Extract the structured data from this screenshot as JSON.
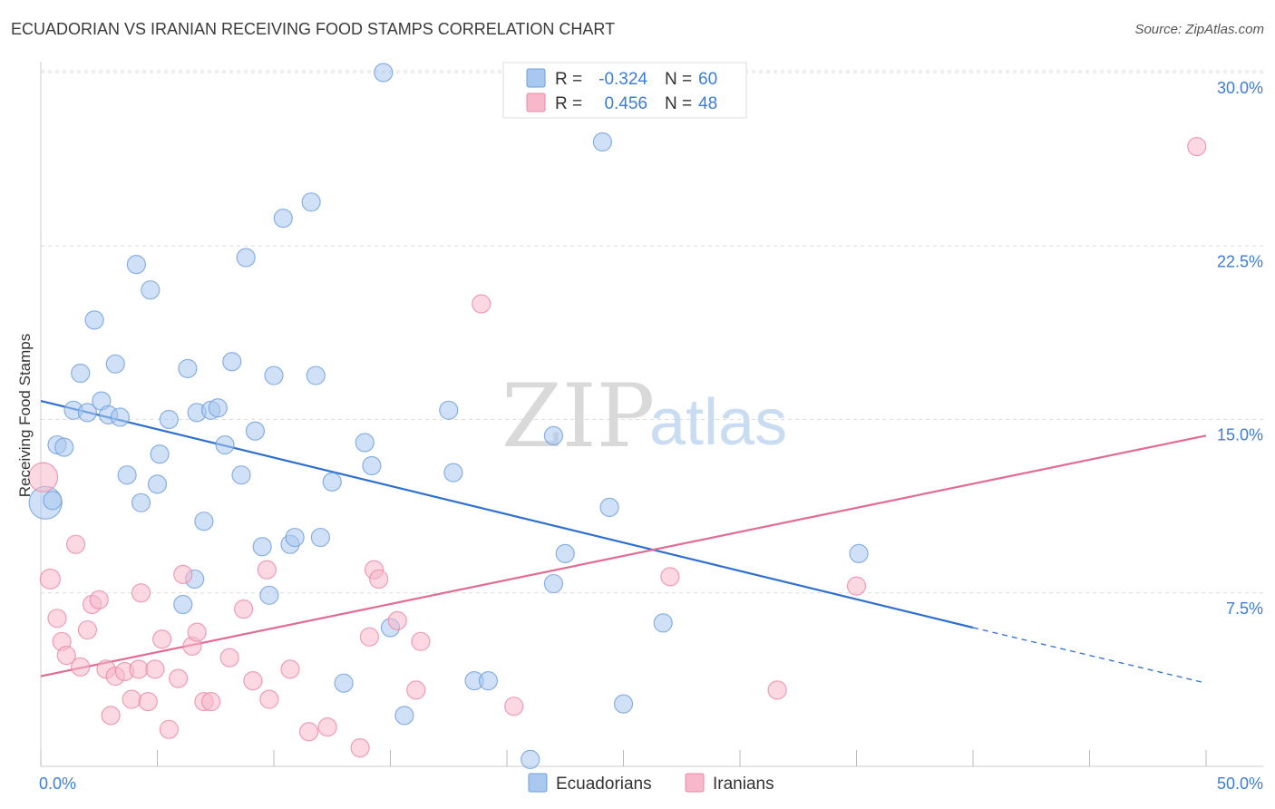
{
  "header": {
    "title": "ECUADORIAN VS IRANIAN RECEIVING FOOD STAMPS CORRELATION CHART",
    "source": "Source: ZipAtlas.com"
  },
  "watermark": {
    "zip": "ZIP",
    "atlas": "atlas"
  },
  "legend": {
    "rows": [
      {
        "r_label": "R =",
        "r_value": "-0.324",
        "n_label": "N =",
        "n_value": "60",
        "color": "#a9c8f0"
      },
      {
        "r_label": "R =",
        "r_value": "0.456",
        "n_label": "N =",
        "n_value": "48",
        "color": "#f7b8cb"
      }
    ]
  },
  "bottom_legend": {
    "items": [
      {
        "label": "Ecuadorians",
        "color": "#a9c8f0"
      },
      {
        "label": "Iranians",
        "color": "#f7b8cb"
      }
    ]
  },
  "chart_data": {
    "type": "scatter",
    "title": "ECUADORIAN VS IRANIAN RECEIVING FOOD STAMPS CORRELATION CHART",
    "xlabel": "",
    "ylabel": "Receiving Food Stamps",
    "xlim": [
      0,
      50
    ],
    "ylim": [
      0,
      30.5
    ],
    "x_tick_labels": [
      {
        "value": 0,
        "label": "0.0%"
      },
      {
        "value": 50,
        "label": "50.0%"
      }
    ],
    "y_ticks": [
      {
        "value": 7.5,
        "label": "7.5%"
      },
      {
        "value": 15.0,
        "label": "15.0%"
      },
      {
        "value": 22.5,
        "label": "22.5%"
      },
      {
        "value": 30.0,
        "label": "30.0%"
      }
    ],
    "grid": true,
    "legend_position": "top-center",
    "series": [
      {
        "name": "Ecuadorians",
        "color": "#a9c8f0",
        "stroke": "#6f9fdc",
        "trend_color": "#2f6fcf",
        "trend": {
          "x0": 0,
          "y0": 15.8,
          "x1": 40,
          "y1": 6.0,
          "dash_to_x": 50,
          "dash_to_y": 3.6
        },
        "points": [
          [
            0.2,
            11.4,
            18
          ],
          [
            0.5,
            11.5,
            10
          ],
          [
            0.7,
            13.9,
            10
          ],
          [
            1.0,
            13.8,
            10
          ],
          [
            1.4,
            15.4,
            10
          ],
          [
            1.7,
            17.0,
            10
          ],
          [
            2.0,
            15.3,
            10
          ],
          [
            2.3,
            19.3,
            10
          ],
          [
            2.6,
            15.8,
            10
          ],
          [
            2.9,
            15.2,
            10
          ],
          [
            3.2,
            17.4,
            10
          ],
          [
            3.4,
            15.1,
            10
          ],
          [
            3.7,
            12.6,
            10
          ],
          [
            4.1,
            21.7,
            10
          ],
          [
            4.3,
            11.4,
            10
          ],
          [
            4.7,
            20.6,
            10
          ],
          [
            5.1,
            13.5,
            10
          ],
          [
            5.0,
            12.2,
            10
          ],
          [
            5.5,
            15.0,
            10
          ],
          [
            6.1,
            7.0,
            10
          ],
          [
            6.3,
            17.2,
            10
          ],
          [
            6.6,
            8.1,
            10
          ],
          [
            6.7,
            15.3,
            10
          ],
          [
            7.0,
            10.6,
            10
          ],
          [
            7.3,
            15.4,
            10
          ],
          [
            7.6,
            15.5,
            10
          ],
          [
            7.9,
            13.9,
            10
          ],
          [
            8.2,
            17.5,
            10
          ],
          [
            8.6,
            12.6,
            10
          ],
          [
            8.8,
            22.0,
            10
          ],
          [
            9.2,
            14.5,
            10
          ],
          [
            9.5,
            9.5,
            10
          ],
          [
            9.8,
            7.4,
            10
          ],
          [
            10.0,
            16.9,
            10
          ],
          [
            10.4,
            23.7,
            10
          ],
          [
            10.7,
            9.6,
            10
          ],
          [
            10.9,
            9.9,
            10
          ],
          [
            11.6,
            24.4,
            10
          ],
          [
            11.8,
            16.9,
            10
          ],
          [
            12.0,
            9.9,
            10
          ],
          [
            12.5,
            12.3,
            10
          ],
          [
            13.0,
            3.6,
            10
          ],
          [
            13.9,
            14.0,
            10
          ],
          [
            14.2,
            13.0,
            10
          ],
          [
            14.7,
            30.0,
            10
          ],
          [
            15.0,
            6.0,
            10
          ],
          [
            15.6,
            2.2,
            10
          ],
          [
            17.5,
            15.4,
            10
          ],
          [
            17.7,
            12.7,
            10
          ],
          [
            18.6,
            3.7,
            10
          ],
          [
            19.2,
            3.7,
            10
          ],
          [
            21.0,
            0.3,
            10
          ],
          [
            22.0,
            14.3,
            10
          ],
          [
            22.0,
            7.9,
            10
          ],
          [
            22.5,
            9.2,
            10
          ],
          [
            24.1,
            27.0,
            10
          ],
          [
            24.4,
            11.2,
            10
          ],
          [
            25.0,
            2.7,
            10
          ],
          [
            26.7,
            6.2,
            10
          ],
          [
            35.1,
            9.2,
            10
          ]
        ]
      },
      {
        "name": "Iranians",
        "color": "#f7b8cb",
        "stroke": "#ec88a7",
        "trend_color": "#e26b95",
        "trend": {
          "x0": 0,
          "y0": 3.9,
          "x1": 50,
          "y1": 14.3
        },
        "points": [
          [
            0.1,
            12.5,
            16
          ],
          [
            0.4,
            8.1,
            11
          ],
          [
            0.7,
            6.4,
            10
          ],
          [
            0.9,
            5.4,
            10
          ],
          [
            1.1,
            4.8,
            10
          ],
          [
            1.5,
            9.6,
            10
          ],
          [
            1.7,
            4.3,
            10
          ],
          [
            2.0,
            5.9,
            10
          ],
          [
            2.2,
            7.0,
            10
          ],
          [
            2.5,
            7.2,
            10
          ],
          [
            2.8,
            4.2,
            10
          ],
          [
            3.0,
            2.2,
            10
          ],
          [
            3.2,
            3.9,
            10
          ],
          [
            3.6,
            4.1,
            10
          ],
          [
            3.9,
            2.9,
            10
          ],
          [
            4.2,
            4.2,
            10
          ],
          [
            4.3,
            7.5,
            10
          ],
          [
            4.6,
            2.8,
            10
          ],
          [
            4.9,
            4.2,
            10
          ],
          [
            5.2,
            5.5,
            10
          ],
          [
            5.5,
            1.6,
            10
          ],
          [
            5.9,
            3.8,
            10
          ],
          [
            6.1,
            8.3,
            10
          ],
          [
            6.5,
            5.2,
            10
          ],
          [
            6.7,
            5.8,
            10
          ],
          [
            7.0,
            2.8,
            10
          ],
          [
            7.3,
            2.8,
            10
          ],
          [
            8.1,
            4.7,
            10
          ],
          [
            8.7,
            6.8,
            10
          ],
          [
            9.1,
            3.7,
            10
          ],
          [
            9.7,
            8.5,
            10
          ],
          [
            9.8,
            2.9,
            10
          ],
          [
            10.7,
            4.2,
            10
          ],
          [
            11.5,
            1.5,
            10
          ],
          [
            12.3,
            1.7,
            10
          ],
          [
            13.7,
            0.8,
            10
          ],
          [
            14.1,
            5.6,
            10
          ],
          [
            14.3,
            8.5,
            10
          ],
          [
            14.5,
            8.1,
            10
          ],
          [
            15.3,
            6.3,
            10
          ],
          [
            16.1,
            3.3,
            10
          ],
          [
            16.3,
            5.4,
            10
          ],
          [
            18.9,
            20.0,
            10
          ],
          [
            20.3,
            2.6,
            10
          ],
          [
            27.0,
            8.2,
            10
          ],
          [
            31.6,
            3.3,
            10
          ],
          [
            35.0,
            7.8,
            10
          ],
          [
            49.6,
            26.8,
            10
          ]
        ]
      }
    ]
  }
}
